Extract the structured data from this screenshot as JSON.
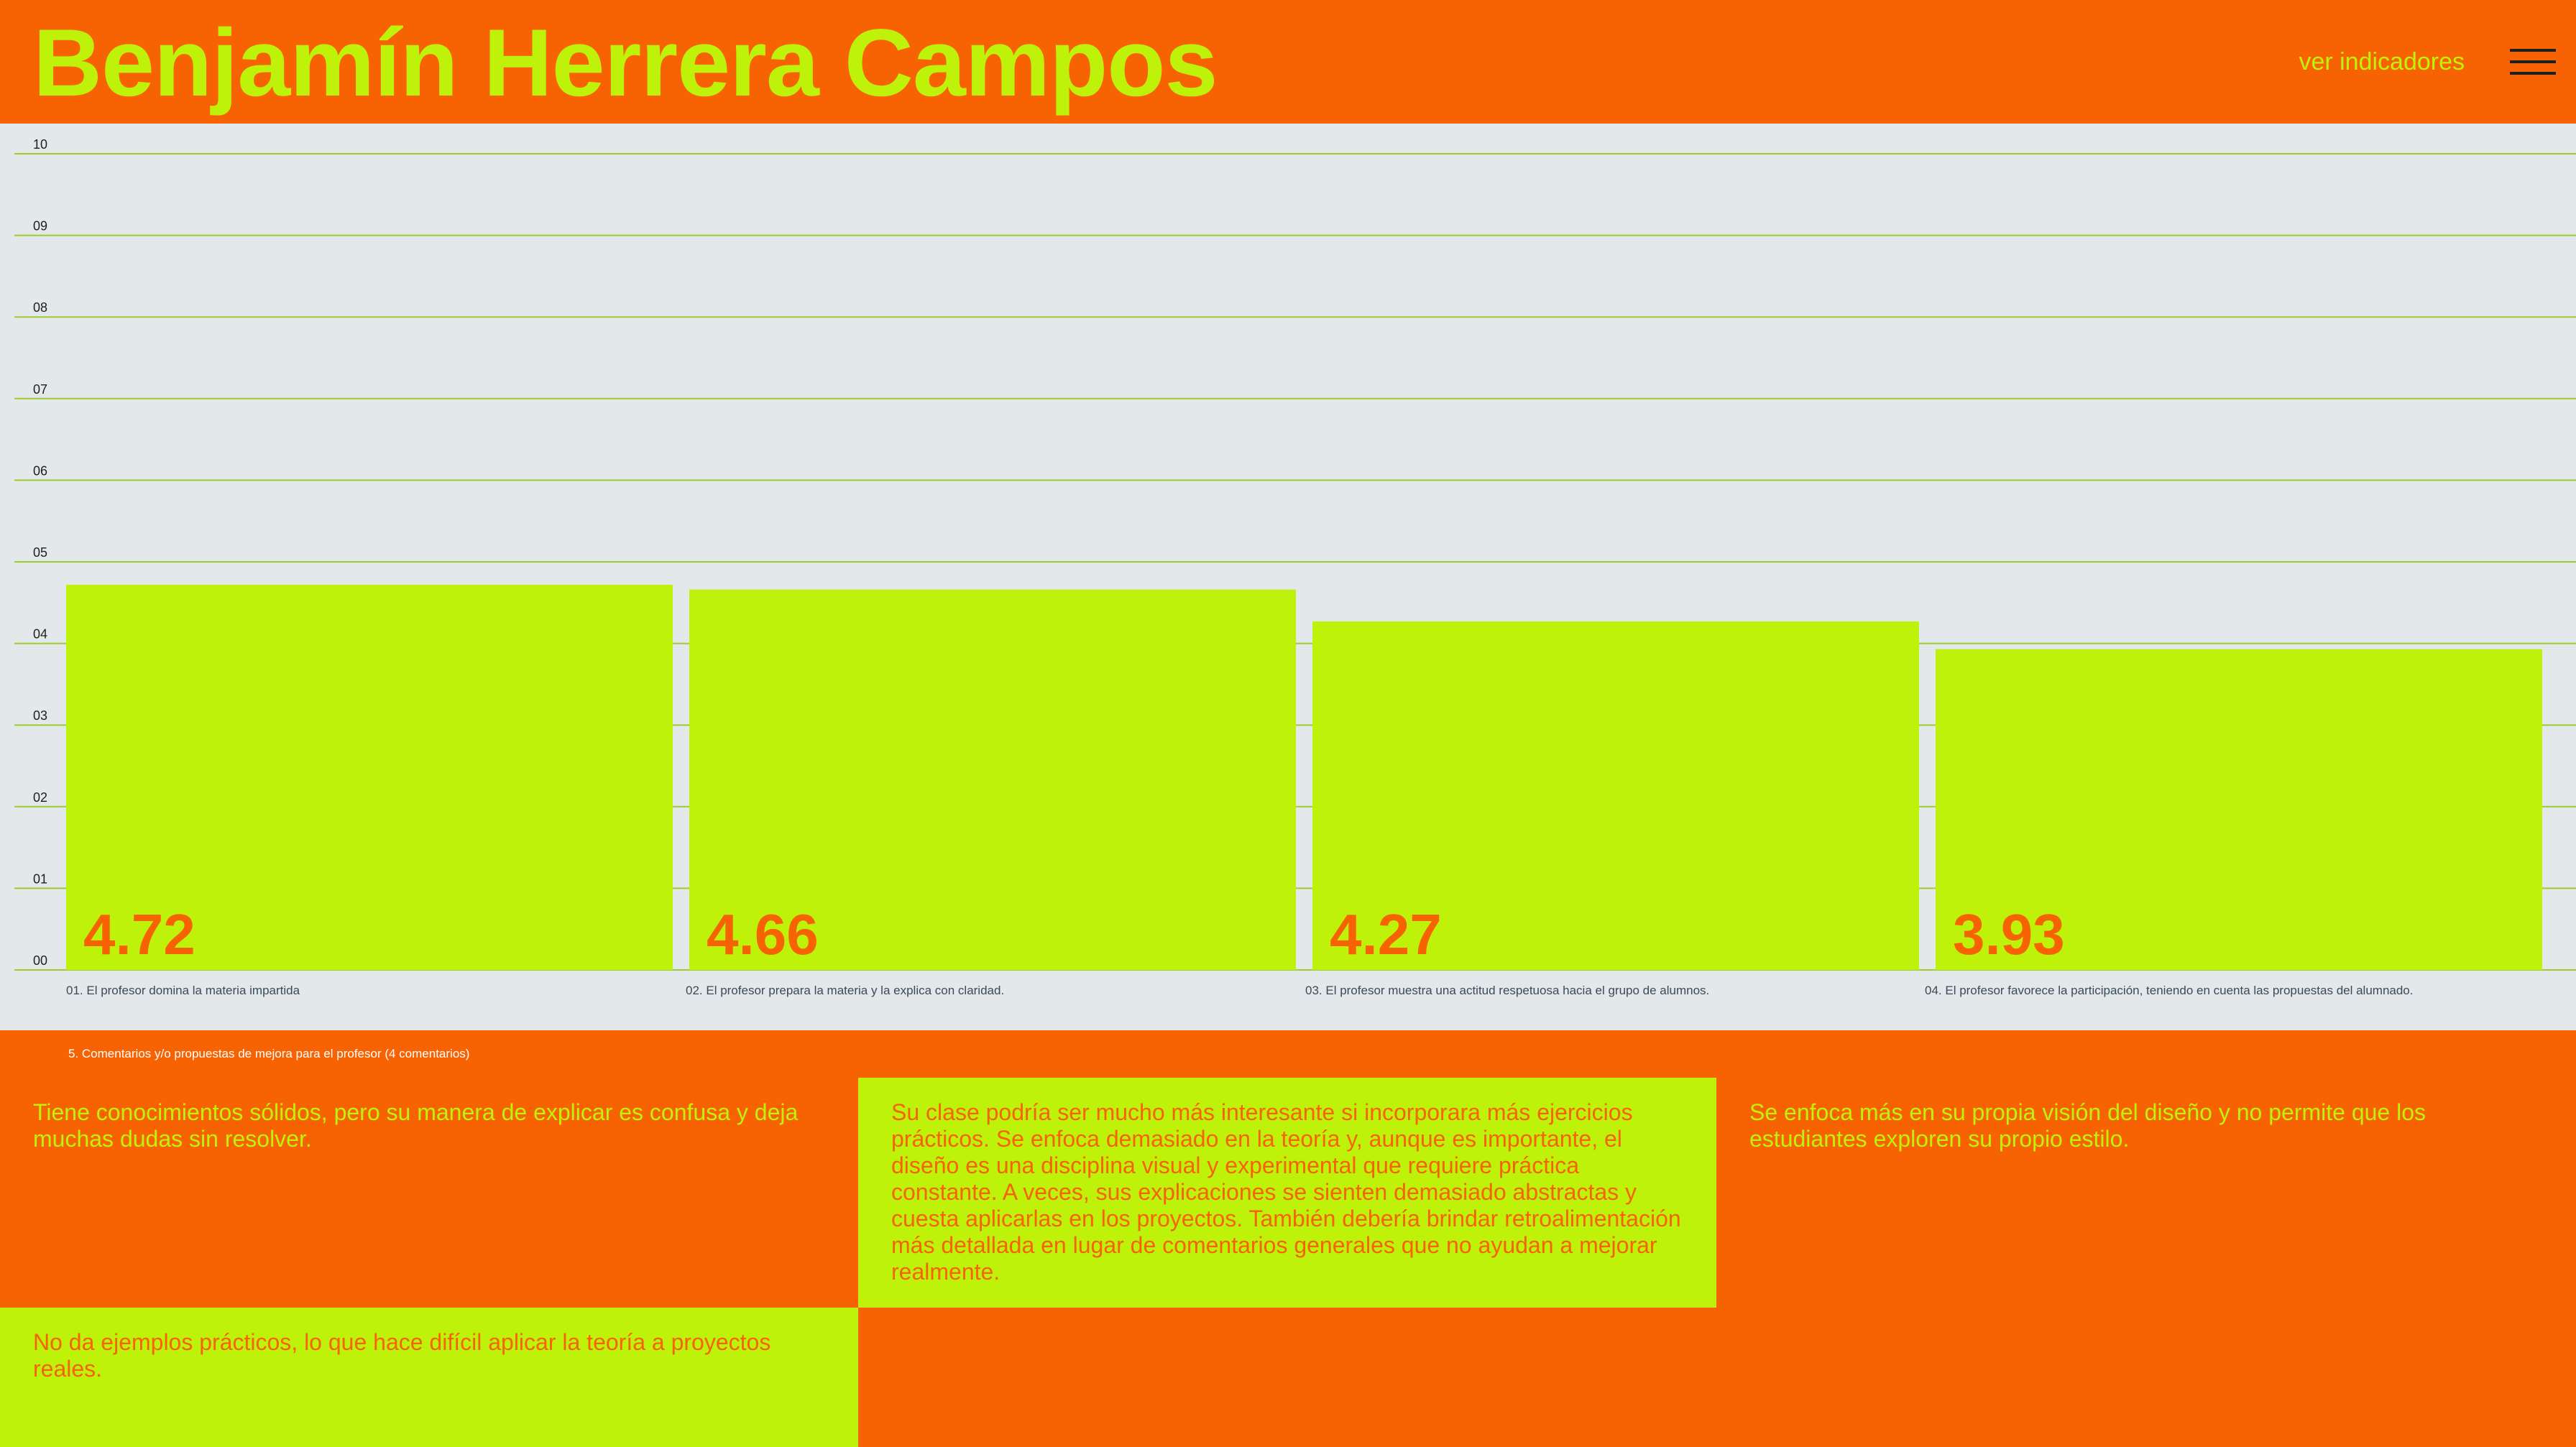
{
  "header": {
    "title": "Benjamín Herrera Campos",
    "link_label": "ver indicadores",
    "menu_icon": "hamburger-menu-icon"
  },
  "colors": {
    "accent": "#f76303",
    "lime": "#bff20a",
    "chart_bg": "#e3e8ea",
    "gridline": "#9ccc2e",
    "tick_text": "#1f1f1f",
    "category_text": "#3a4a5a"
  },
  "chart_data": {
    "type": "bar",
    "categories": [
      "01. El profesor domina la materia impartida",
      "02. El profesor prepara la materia y la explica con claridad.",
      "03. El profesor muestra una actitud respetuosa hacia el grupo de alumnos.",
      "04. El profesor favorece la participación, teniendo en cuenta las propuestas del alumnado."
    ],
    "values": [
      4.72,
      4.66,
      4.27,
      3.93
    ],
    "value_labels": [
      "4.72",
      "4.66",
      "4.27",
      "3.93"
    ],
    "ylim": [
      0,
      10
    ],
    "yticks": [
      "00",
      "01",
      "02",
      "03",
      "04",
      "05",
      "06",
      "07",
      "08",
      "09",
      "10"
    ],
    "grid": true
  },
  "comments": {
    "heading": "5. Comentarios y/o propuestas de mejora para el profesor (4 comentarios)",
    "items": [
      "Tiene conocimientos sólidos, pero su manera de explicar es confusa y deja muchas dudas sin resolver.",
      "Su clase podría ser mucho más interesante si incorporara más ejercicios prácticos. Se enfoca demasiado en la teoría y, aunque es importante, el diseño es una disciplina visual y experimental que requiere práctica constante. A veces, sus explicaciones se sienten demasiado abstractas y cuesta aplicarlas en los proyectos. También debería brindar retroalimentación más detallada en lugar de comentarios generales que no ayudan a mejorar realmente.",
      "Se enfoca más en su propia visión del diseño y no permite que los estudiantes exploren su propio estilo.",
      "No da ejemplos prácticos, lo que hace difícil aplicar la teoría a proyectos reales."
    ]
  }
}
